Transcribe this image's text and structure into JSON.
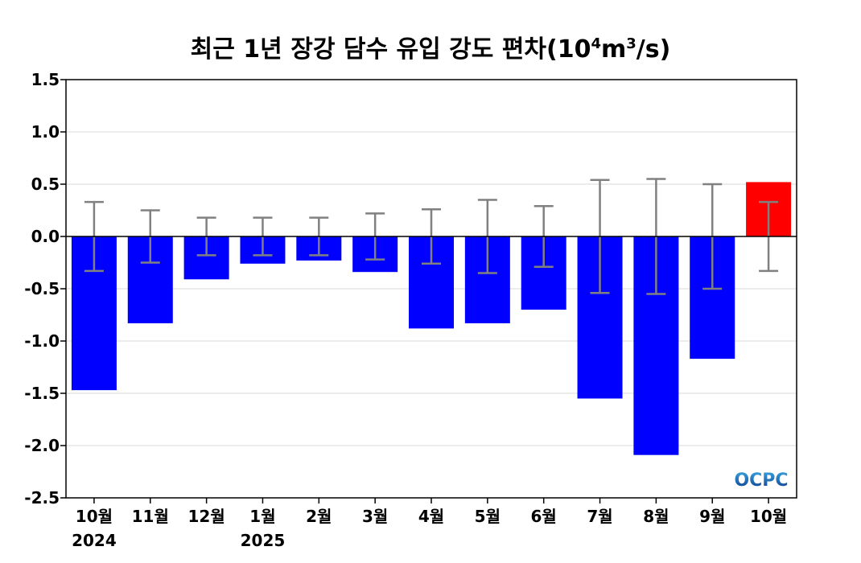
{
  "chart_data": {
    "type": "bar",
    "title_main": "최근 1년 장강 담수 유입 강도 편차(10",
    "title_sup1": "4",
    "title_mid": "m",
    "title_sup2": "3",
    "title_end": "/s)",
    "categories": [
      "10월",
      "11월",
      "12월",
      "1월",
      "2월",
      "3월",
      "4월",
      "5월",
      "6월",
      "7월",
      "8월",
      "9월",
      "10월"
    ],
    "year_labels": [
      "2024",
      "",
      "",
      "2025",
      "",
      "",
      "",
      "",
      "",
      "",
      "",
      "",
      ""
    ],
    "values": [
      -1.47,
      -0.83,
      -0.41,
      -0.26,
      -0.23,
      -0.34,
      -0.88,
      -0.83,
      -0.7,
      -1.55,
      -2.09,
      -1.17,
      0.52
    ],
    "error": [
      0.33,
      0.25,
      0.18,
      0.18,
      0.18,
      0.22,
      0.26,
      0.35,
      0.29,
      0.54,
      0.55,
      0.5,
      0.33
    ],
    "bar_colors": [
      "#0000ff",
      "#0000ff",
      "#0000ff",
      "#0000ff",
      "#0000ff",
      "#0000ff",
      "#0000ff",
      "#0000ff",
      "#0000ff",
      "#0000ff",
      "#0000ff",
      "#0000ff",
      "#ff0000"
    ],
    "ylim": [
      -2.5,
      1.5
    ],
    "yticks": [
      "1.5",
      "1.0",
      "0.5",
      "0.0",
      "-0.5",
      "-1.0",
      "-1.5",
      "-2.0",
      "-2.5"
    ],
    "ytick_values": [
      1.5,
      1.0,
      0.5,
      0.0,
      -0.5,
      -1.0,
      -1.5,
      -2.0,
      -2.5
    ],
    "grid": true,
    "logo": "OCPC"
  }
}
